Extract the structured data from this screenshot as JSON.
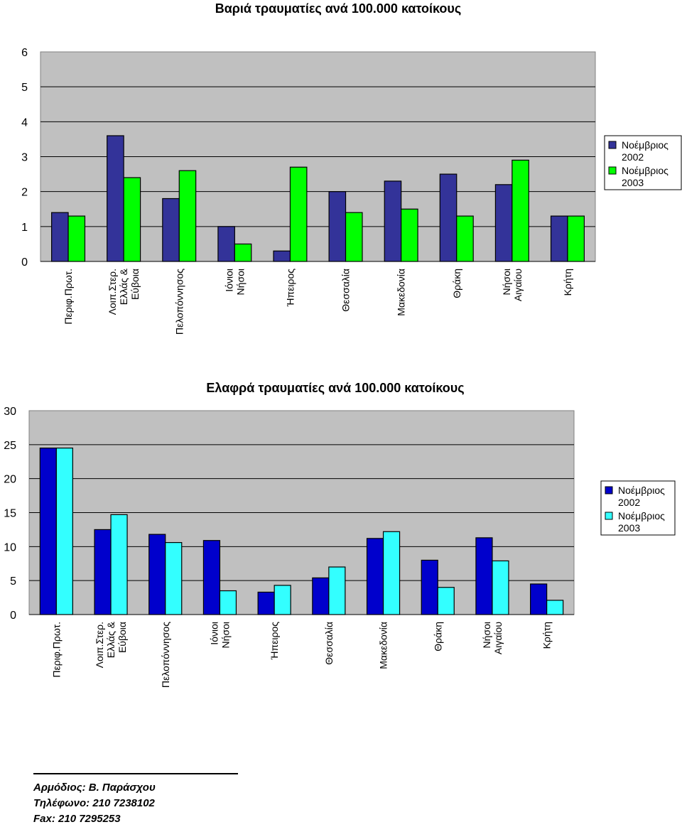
{
  "chart_data": [
    {
      "type": "bar",
      "title": "Βαριά τραυματίες ανά 100.000 κατοίκους",
      "categories": [
        "Περιφ.Πρωτ.",
        "Λοιπ.Στερ. Ελλάς & Εύβοια",
        "Πελοπόννησος",
        "Ιόνιοι Νήσοι",
        "Ήπειρος",
        "Θεσσαλία",
        "Μακεδονία",
        "Θράκη",
        "Νήσοι Αιγαίου",
        "Κρήτη"
      ],
      "series": [
        {
          "name": "Νοέμβριος 2002",
          "color": "#333399",
          "values": [
            1.4,
            3.6,
            1.8,
            1.0,
            0.3,
            2.0,
            2.3,
            2.5,
            2.2,
            1.3
          ]
        },
        {
          "name": "Νοέμβριος 2003",
          "color": "#00ff00",
          "values": [
            1.3,
            2.4,
            2.6,
            0.5,
            2.7,
            1.4,
            1.5,
            1.3,
            2.9,
            1.3
          ]
        }
      ],
      "ylim": [
        0,
        6
      ],
      "yticks": [
        "0",
        "1",
        "2",
        "3",
        "4",
        "5",
        "6"
      ],
      "xlabel": "",
      "ylabel": "",
      "grid": true,
      "legend": "right",
      "plot_background": "#c0c0c0"
    },
    {
      "type": "bar",
      "title": "Ελαφρά τραυματίες ανά 100.000 κατοίκους",
      "categories": [
        "Περιφ.Πρωτ.",
        "Λοιπ.Στερ. Ελλάς & Εύβοια",
        "Πελοπόννησος",
        "Ιόνιοι Νήσοι",
        "Ήπειρος",
        "Θεσσαλία",
        "Μακεδονία",
        "Θράκη",
        "Νήσοι Αιγαίου",
        "Κρήτη"
      ],
      "series": [
        {
          "name": "Νοέμβριος 2002",
          "color": "#0000cc",
          "values": [
            24.5,
            12.5,
            11.8,
            10.9,
            3.3,
            5.4,
            11.2,
            8.0,
            11.3,
            4.5
          ]
        },
        {
          "name": "Νοέμβριος 2003",
          "color": "#33ffff",
          "values": [
            24.5,
            14.7,
            10.6,
            3.5,
            4.3,
            7.0,
            12.2,
            4.0,
            7.9,
            2.1
          ]
        }
      ],
      "ylim": [
        0,
        30
      ],
      "yticks": [
        "0",
        "5",
        "10",
        "15",
        "20",
        "25",
        "30"
      ],
      "xlabel": "",
      "ylabel": "",
      "grid": true,
      "legend": "right",
      "plot_background": "#c0c0c0"
    }
  ],
  "footer": {
    "line1": "Αρμόδιος: Β. Παράσχου",
    "line2": "Τηλέφωνο: 210 7238102",
    "line3": "Fax:  210 7295253"
  }
}
